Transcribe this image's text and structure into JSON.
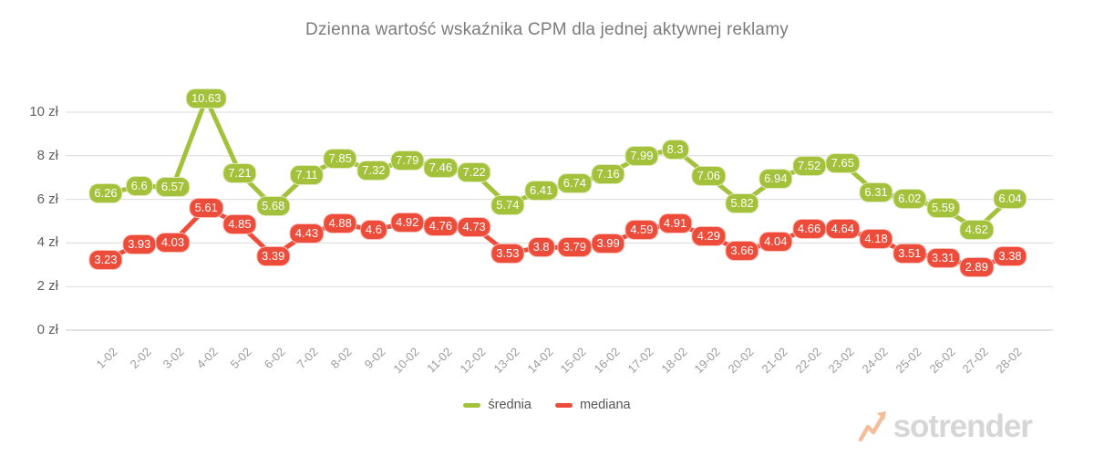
{
  "title": "Dzienna wartość wskaźnika CPM dla jednej aktywnej reklamy",
  "legend": {
    "srednia": "średnia",
    "mediana": "mediana"
  },
  "watermark": {
    "text": "sotrender"
  },
  "colors": {
    "srednia": "#a3c13a",
    "mediana": "#ee4c3b",
    "grid": "#dadada",
    "axis_line": "#c6c6c6",
    "y_label": "#5f5f5f",
    "x_label": "#9b9b9b",
    "title": "#7b7b7b",
    "legend_text": "#555555",
    "watermark_text": "#d6d6d6",
    "watermark_icon": "#f4bd9b"
  },
  "chart_data": {
    "type": "line",
    "title": "Dzienna wartość wskaźnika CPM dla jednej aktywnej reklamy",
    "categories": [
      "1-02",
      "2-02",
      "3-02",
      "4-02",
      "5-02",
      "6-02",
      "7-02",
      "8-02",
      "9-02",
      "10-02",
      "11-02",
      "12-02",
      "13-02",
      "14-02",
      "15-02",
      "16-02",
      "17-02",
      "18-02",
      "19-02",
      "20-02",
      "21-02",
      "22-02",
      "23-02",
      "24-02",
      "25-02",
      "26-02",
      "27-02",
      "28-02"
    ],
    "series": [
      {
        "name": "średnia",
        "color": "#a3c13a",
        "values": [
          6.26,
          6.6,
          6.57,
          10.63,
          7.21,
          5.68,
          7.11,
          7.85,
          7.32,
          7.79,
          7.46,
          7.22,
          5.74,
          6.41,
          6.74,
          7.16,
          7.99,
          8.3,
          7.06,
          5.82,
          6.94,
          7.52,
          7.65,
          6.31,
          6.02,
          5.59,
          4.62,
          6.04
        ]
      },
      {
        "name": "mediana",
        "color": "#ee4c3b",
        "values": [
          3.23,
          3.93,
          4.03,
          5.61,
          4.85,
          3.39,
          4.43,
          4.88,
          4.6,
          4.92,
          4.76,
          4.73,
          3.53,
          3.8,
          3.79,
          3.99,
          4.59,
          4.91,
          4.29,
          3.66,
          4.04,
          4.66,
          4.64,
          4.18,
          3.51,
          3.31,
          2.89,
          3.38
        ]
      }
    ],
    "yticks": [
      0,
      2,
      4,
      6,
      8,
      10
    ],
    "ytick_suffix": " zł",
    "ylim": [
      0,
      11.2
    ],
    "grid": true,
    "legend_position": "bottom",
    "data_labels": true
  }
}
